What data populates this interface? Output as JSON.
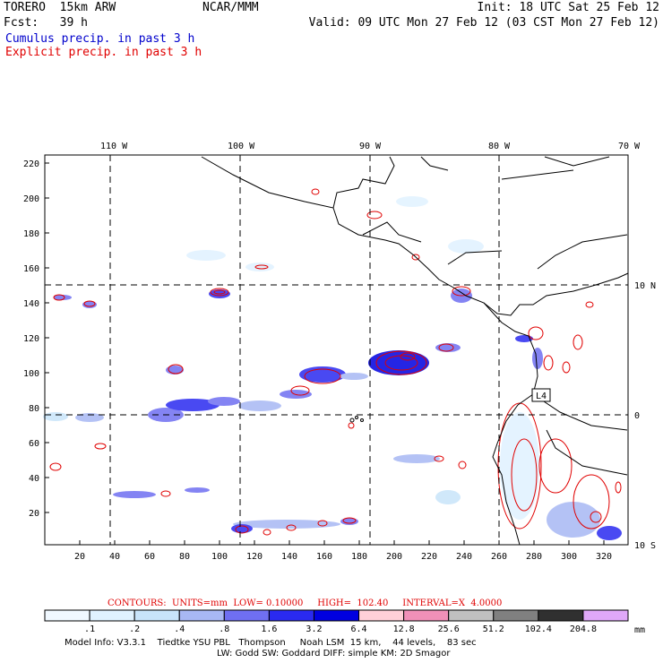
{
  "header": {
    "model": "TORERO  15km ARW",
    "fcst": "Fcst:   39 h",
    "org": "NCAR/MMM",
    "init": "Init: 18 UTC Sat 25 Feb 12",
    "valid": "Valid: 09 UTC Mon 27 Feb 12 (03 CST Mon 27 Feb 12)",
    "field1": "Cumulus precip. in past 3 h",
    "field2": "Explicit precip. in past 3 h",
    "field1_color": "#0000cc",
    "field2_color": "#e00000"
  },
  "map": {
    "lon_labels": [
      "110 W",
      "100 W",
      "90 W",
      "80 W",
      "70 W"
    ],
    "lat_labels_right": [
      "10 N",
      "0",
      "10 S"
    ],
    "y_ticks": [
      "220",
      "200",
      "180",
      "160",
      "140",
      "120",
      "100",
      "80",
      "60",
      "40",
      "20"
    ],
    "x_ticks": [
      "20",
      "40",
      "60",
      "80",
      "100",
      "120",
      "140",
      "160",
      "180",
      "200",
      "220",
      "240",
      "260",
      "280",
      "300",
      "320"
    ],
    "box_label": "L4"
  },
  "contours": {
    "text": "CONTOURS:  UNITS=mm  LOW= 0.10000     HIGH=  102.40     INTERVAL=X  4.0000"
  },
  "colorbar": {
    "labels": [
      ".1",
      ".2",
      ".4",
      ".8",
      "1.6",
      "3.2",
      "6.4",
      "12.8",
      "25.6",
      "51.2",
      "102.4",
      "204.8"
    ],
    "unit": "mm",
    "colors": [
      "#ffffff",
      "#ffffff",
      "#f0f8ff",
      "#e0f2ff",
      "#c8e4fa",
      "#a8b8f4",
      "#6f6ff2",
      "#2a2af0",
      "#0000e0",
      "#ffd0d8",
      "#f090b8",
      "#c0c0c0",
      "#808080",
      "#303030",
      "#e0a8f8"
    ]
  },
  "footer": {
    "line1": "Model Info: V3.3.1    Tiedtke YSU PBL   Thompson     Noah LSM  15 km,    44 levels,    83 sec",
    "line2": "LW: Godd SW: Goddard DIFF: simple KM: 2D Smagor"
  }
}
